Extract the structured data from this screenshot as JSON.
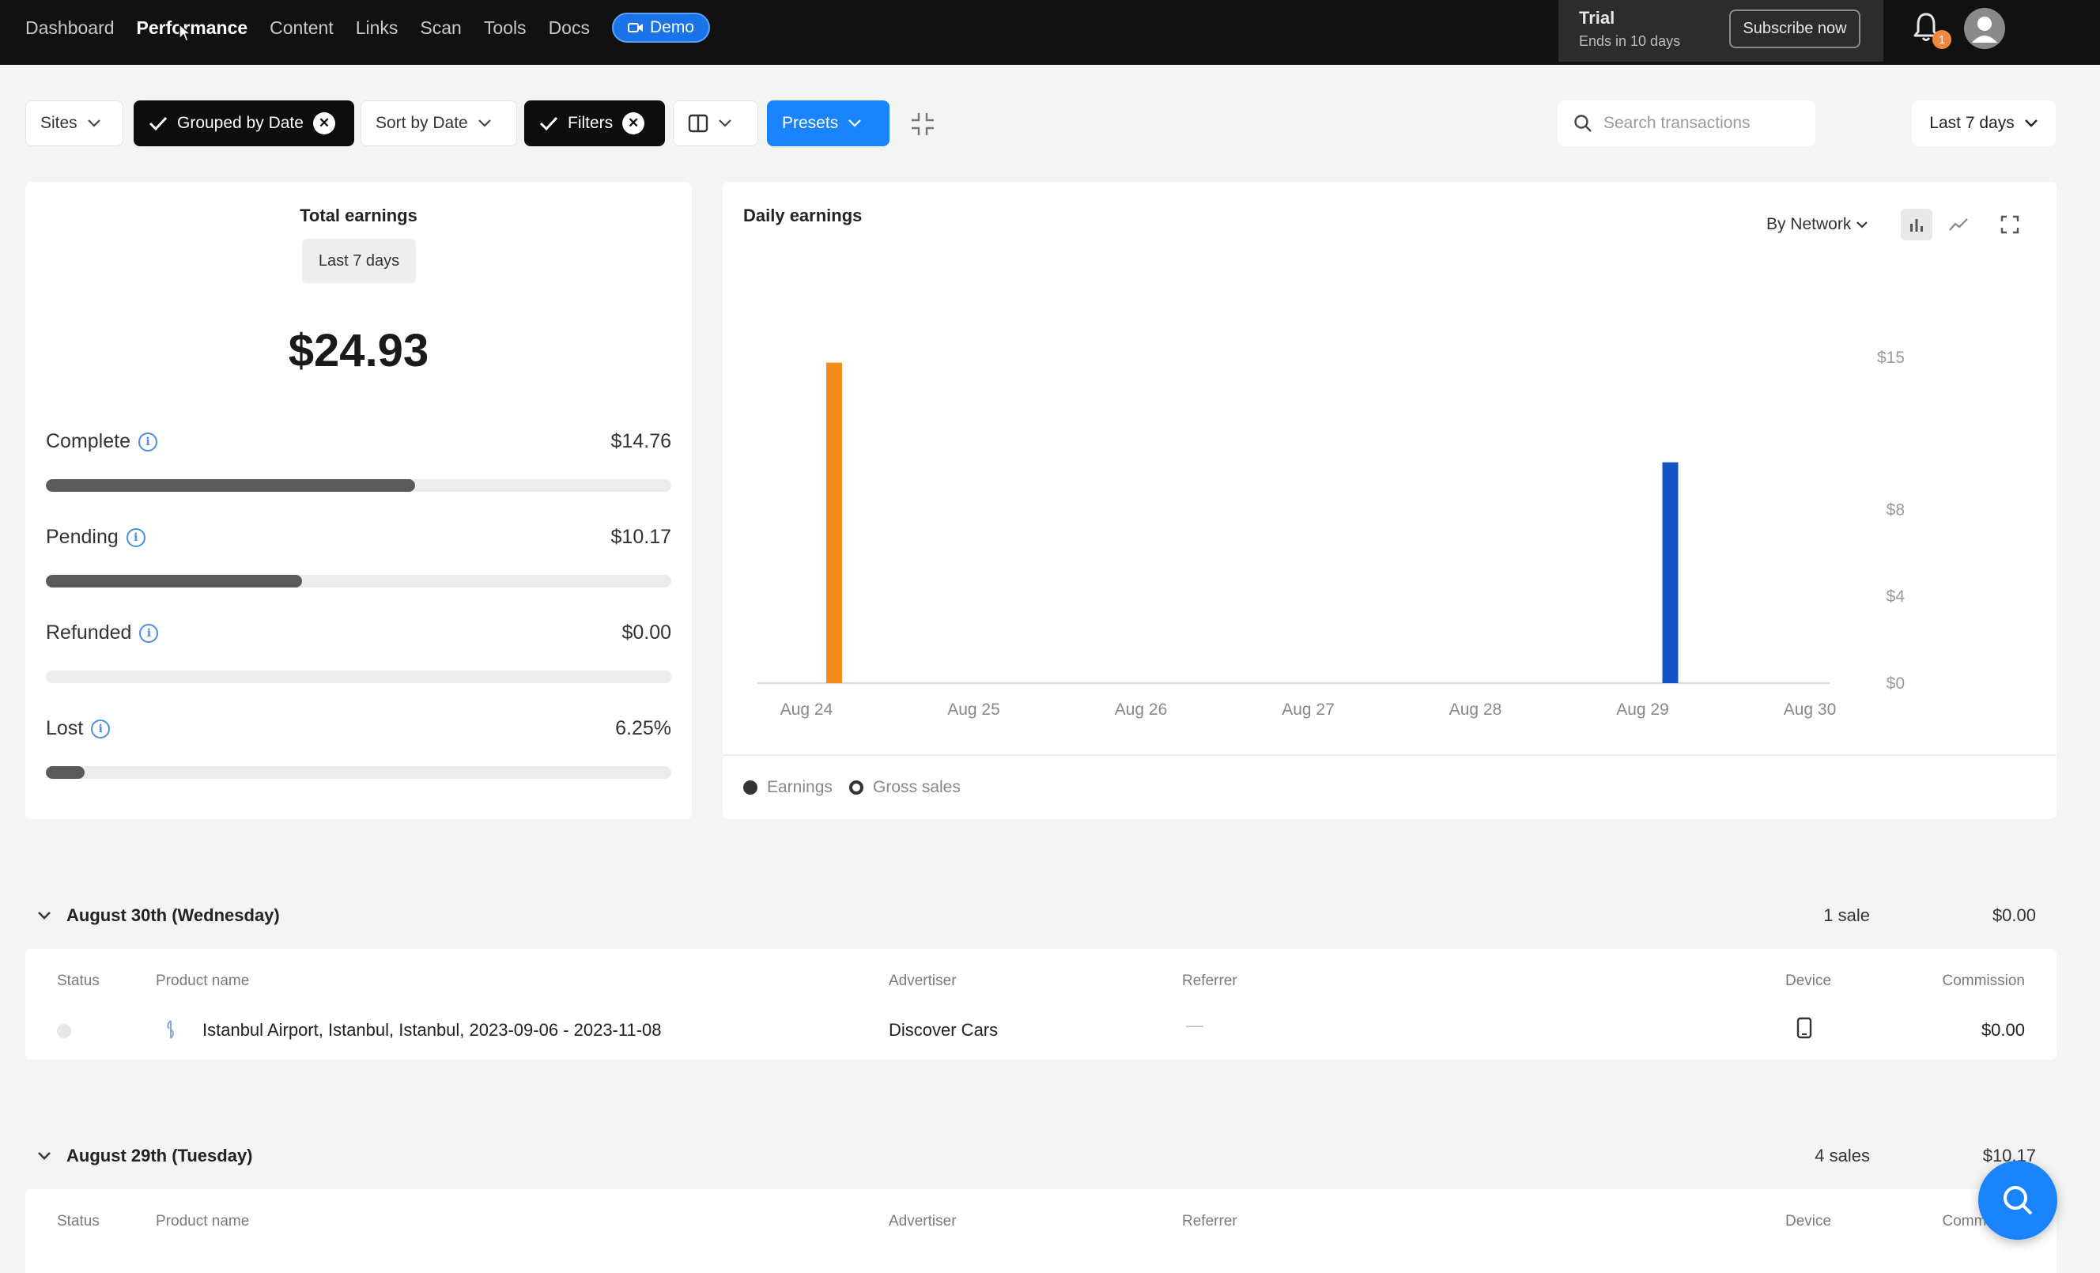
{
  "nav": {
    "items": [
      {
        "label": "Dashboard",
        "active": false
      },
      {
        "label": "Performance",
        "active": true
      },
      {
        "label": "Content",
        "active": false
      },
      {
        "label": "Links",
        "active": false
      },
      {
        "label": "Scan",
        "active": false
      },
      {
        "label": "Tools",
        "active": false
      },
      {
        "label": "Docs",
        "active": false
      }
    ],
    "demo_label": "Demo"
  },
  "trial": {
    "title": "Trial",
    "subtitle": "Ends in 10 days",
    "subscribe_label": "Subscribe now"
  },
  "notifications": {
    "count": "1"
  },
  "toolbar": {
    "sites_label": "Sites",
    "grouped_label": "Grouped by Date",
    "sort_label": "Sort by Date",
    "filters_label": "Filters",
    "presets_label": "Presets",
    "search_placeholder": "Search transactions",
    "range_label": "Last 7 days"
  },
  "total_earnings": {
    "title": "Total earnings",
    "period": "Last 7 days",
    "amount": "$24.93",
    "metrics": [
      {
        "label": "Complete",
        "value": "$14.76",
        "fraction": 0.59
      },
      {
        "label": "Pending",
        "value": "$10.17",
        "fraction": 0.41
      },
      {
        "label": "Refunded",
        "value": "$0.00",
        "fraction": 0
      },
      {
        "label": "Lost",
        "value": "6.25%",
        "fraction": 0.0625
      }
    ]
  },
  "daily_earnings": {
    "title": "Daily earnings",
    "grouping_label": "By Network",
    "legend": [
      {
        "label": "Earnings",
        "style": "solid"
      },
      {
        "label": "Gross sales",
        "style": "ring"
      }
    ]
  },
  "chart_data": {
    "type": "bar",
    "categories": [
      "Aug 24",
      "Aug 25",
      "Aug 26",
      "Aug 27",
      "Aug 28",
      "Aug 29",
      "Aug 30"
    ],
    "series": [
      {
        "values": [
          14.76,
          0,
          0,
          0,
          0,
          0,
          0
        ],
        "color": "#f28c1b"
      },
      {
        "values": [
          0,
          0,
          0,
          0,
          0,
          10.17,
          0
        ],
        "color": "#1454c2"
      }
    ],
    "y_ticks": [
      {
        "value": 0,
        "label": "$0"
      },
      {
        "value": 4,
        "label": "$4"
      },
      {
        "value": 8,
        "label": "$8"
      },
      {
        "value": 15,
        "label": "$15"
      }
    ],
    "ylim": [
      0,
      15
    ],
    "y_axis_position": "right",
    "grid": false
  },
  "groups": [
    {
      "title": "August 30th (Wednesday)",
      "sales": "1 sale",
      "total": "$0.00",
      "columns": [
        "Status",
        "Product name",
        "Advertiser",
        "Referrer",
        "Device",
        "Commission"
      ],
      "rows": [
        {
          "product": "Istanbul Airport, Istanbul, Istanbul, 2023-09-06 - 2023-11-08",
          "advertiser": "Discover Cars",
          "referrer": "—",
          "device": "mobile-icon",
          "commission": "$0.00"
        }
      ]
    },
    {
      "title": "August 29th (Tuesday)",
      "sales": "4 sales",
      "total": "$10.17",
      "columns": [
        "Status",
        "Product name",
        "Advertiser",
        "Referrer",
        "Device",
        "Commission"
      ],
      "rows": []
    }
  ],
  "colors": {
    "accent": "#1a84ff",
    "topbar": "#111111",
    "bar_orange": "#f28c1b",
    "bar_blue": "#1454c2",
    "progress_fill": "#5a5a5a"
  }
}
